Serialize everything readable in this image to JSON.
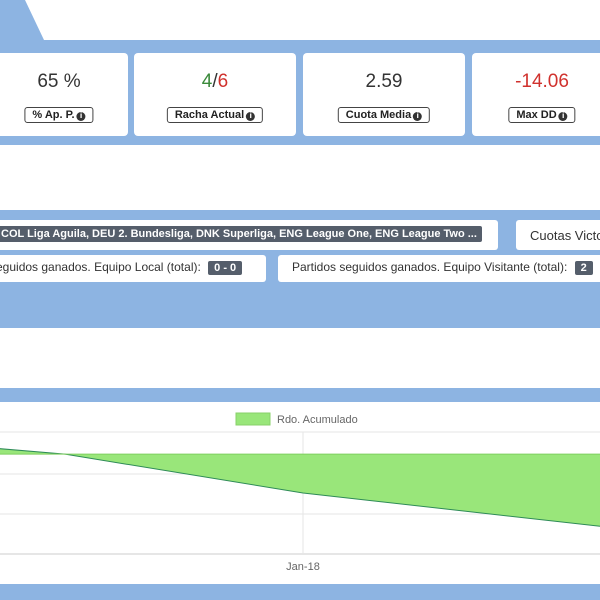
{
  "stats": {
    "hit_rate": {
      "value": "65 %",
      "label": "% Ap. P."
    },
    "streak": {
      "wins": "4",
      "sep": "/",
      "total": "6",
      "label": "Racha Actual"
    },
    "avg_odds": {
      "value": "2.59",
      "label": "Cuota Media"
    },
    "max_dd": {
      "value": "-14.06",
      "label": "Max DD",
      "color": "#d0312d"
    }
  },
  "filters": {
    "leagues": "COL Liga Aguila, DEU 2. Bundesliga, DNK Superliga, ENG League One, ENG League Two ...",
    "odds_label": "Cuotas Victo",
    "home_streak_label": "eguidos ganados. Equipo Local (total):",
    "home_streak_value": "0 - 0",
    "away_streak_label": "Partidos seguidos ganados. Equipo Visitante (total):",
    "away_streak_value": "2"
  },
  "chart_data": {
    "type": "area",
    "legend": "Rdo. Acumulado",
    "legend_position": "top",
    "fill_color": "#99e67a",
    "line_color": "#2e8b57",
    "x_tick_labels": [
      "Jan-18"
    ],
    "series": [
      {
        "name": "Rdo. Acumulado",
        "values": [
          0.8,
          0,
          -3.5,
          -6.5
        ]
      }
    ],
    "grid": true
  }
}
